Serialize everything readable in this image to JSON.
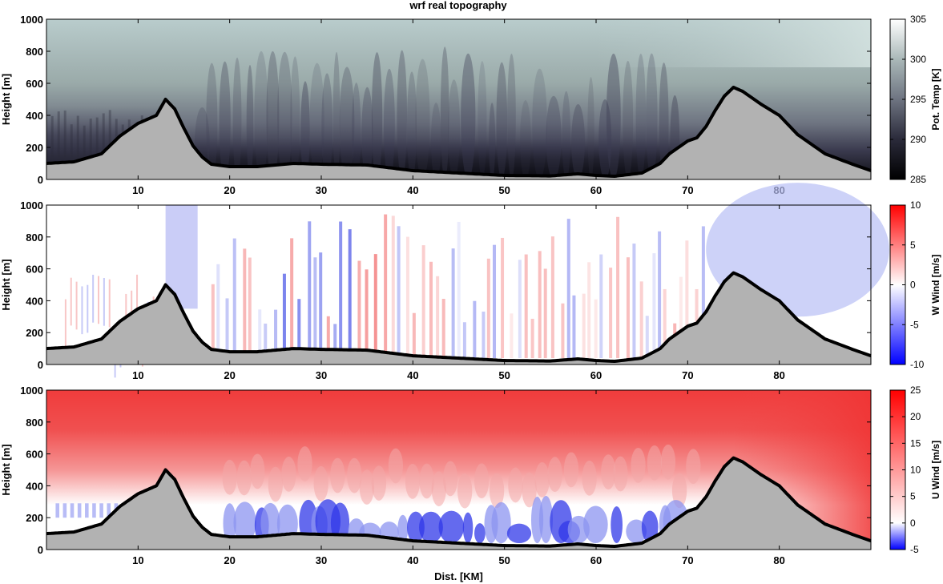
{
  "figure": {
    "title": "wrf real topography"
  },
  "chart_data": [
    {
      "type": "heatmap",
      "field": "potential_temperature",
      "title": "wrf real topography",
      "xlabel": "",
      "ylabel": "Height [m]",
      "colorbar_label": "Pot. Temp [K]",
      "xlim": [
        0,
        90
      ],
      "ylim": [
        0,
        1000
      ],
      "x_ticks": [
        10,
        20,
        30,
        40,
        50,
        60,
        70,
        80
      ],
      "y_ticks": [
        0,
        200,
        400,
        600,
        800,
        1000
      ],
      "clim": [
        285,
        305
      ],
      "colorbar_ticks": [
        285,
        290,
        295,
        300,
        305
      ],
      "colormap": "bone",
      "colormap_stops": [
        "#000000",
        "#4a4a5e",
        "#9aa8ab",
        "#ffffff"
      ],
      "grid": false
    },
    {
      "type": "heatmap",
      "field": "vertical_wind",
      "xlabel": "",
      "ylabel": "Height [m]",
      "colorbar_label": "W Wind [m/s]",
      "xlim": [
        0,
        90
      ],
      "ylim": [
        0,
        1000
      ],
      "x_ticks": [
        10,
        20,
        30,
        40,
        50,
        60,
        70,
        80
      ],
      "y_ticks": [
        0,
        200,
        400,
        600,
        800,
        1000
      ],
      "clim": [
        -10,
        10
      ],
      "colorbar_ticks": [
        -10,
        -5,
        0,
        5,
        10
      ],
      "colormap": "blue-white-red",
      "colormap_stops": [
        "#0000ff",
        "#ffffff",
        "#ff0000"
      ],
      "grid": false
    },
    {
      "type": "heatmap",
      "field": "horizontal_wind",
      "xlabel": "Dist. [KM]",
      "ylabel": "Height [m]",
      "colorbar_label": "U Wind [m/s]",
      "xlim": [
        0,
        90
      ],
      "ylim": [
        0,
        1000
      ],
      "x_ticks": [
        10,
        20,
        30,
        40,
        50,
        60,
        70,
        80
      ],
      "y_ticks": [
        0,
        200,
        400,
        600,
        800,
        1000
      ],
      "clim": [
        -5,
        25
      ],
      "colorbar_ticks": [
        -5,
        0,
        5,
        10,
        15,
        20,
        25
      ],
      "colormap": "blue-white-red",
      "colormap_stops": [
        "#0000ff",
        "#ffffff",
        "#ff0000"
      ],
      "grid": false
    }
  ],
  "terrain": {
    "color": "#b2b2b2",
    "x": [
      0,
      3,
      6,
      8,
      10,
      12,
      13,
      14,
      15,
      16,
      17,
      18,
      20,
      23,
      25,
      27,
      30,
      35,
      40,
      45,
      50,
      55,
      58,
      60,
      62,
      65,
      67,
      68,
      69,
      70,
      71,
      72,
      73,
      74,
      75,
      76,
      78,
      80,
      82,
      85,
      88,
      90
    ],
    "height": [
      100,
      110,
      160,
      270,
      350,
      400,
      500,
      440,
      320,
      210,
      140,
      95,
      80,
      80,
      90,
      100,
      95,
      90,
      55,
      40,
      25,
      22,
      35,
      25,
      20,
      40,
      100,
      160,
      200,
      240,
      260,
      330,
      430,
      520,
      575,
      550,
      470,
      400,
      280,
      160,
      95,
      55
    ]
  }
}
